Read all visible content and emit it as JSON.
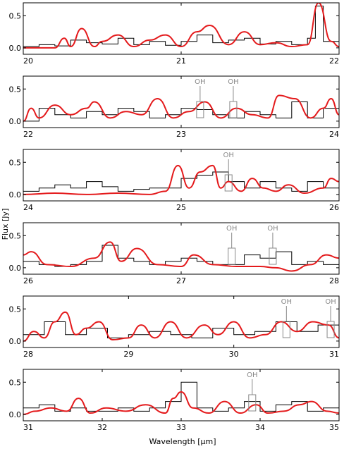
{
  "figure": {
    "xlabel": "Wavelength [μm]",
    "ylabel": "Flux [Jy]"
  },
  "colors": {
    "observed": "#000000",
    "model": "#e41a1c",
    "oh_marker": "#888888"
  },
  "chart_data": [
    {
      "type": "line",
      "panel": 1,
      "xlim": [
        20,
        22
      ],
      "ylim": [
        -0.1,
        0.7
      ],
      "x_ticks": [
        "20",
        "21",
        "22"
      ],
      "y_ticks": [
        "0.0",
        "0.5"
      ],
      "series": [
        {
          "x": [
            20.0,
            20.1,
            20.2,
            20.3,
            20.4,
            20.5,
            20.6,
            20.7,
            20.8,
            20.9,
            21.0,
            21.1,
            21.2,
            21.3,
            21.4,
            21.5,
            21.6,
            21.7,
            21.8,
            21.85,
            21.9,
            22.0
          ],
          "y": [
            0.02,
            0.05,
            0.03,
            0.12,
            0.08,
            0.06,
            0.15,
            0.05,
            0.1,
            0.04,
            0.1,
            0.2,
            0.08,
            0.12,
            0.15,
            0.06,
            0.1,
            0.05,
            0.15,
            0.65,
            0.1,
            0.05
          ]
        },
        {
          "x": [
            20.0,
            20.1,
            20.2,
            20.26,
            20.3,
            20.37,
            20.45,
            20.5,
            20.6,
            20.7,
            20.8,
            20.9,
            21.0,
            21.1,
            21.18,
            21.3,
            21.4,
            21.5,
            21.6,
            21.7,
            21.8,
            21.87,
            21.95,
            22.0
          ],
          "y": [
            0.0,
            0.0,
            0.0,
            0.15,
            0.02,
            0.3,
            0.02,
            0.1,
            0.2,
            0.02,
            0.12,
            0.2,
            0.02,
            0.25,
            0.35,
            0.05,
            0.25,
            0.05,
            0.08,
            0.02,
            0.05,
            0.7,
            0.1,
            0.02
          ]
        }
      ],
      "oh_lines": []
    },
    {
      "type": "line",
      "panel": 2,
      "xlim": [
        22,
        24
      ],
      "ylim": [
        -0.1,
        0.7
      ],
      "x_ticks": [
        "22",
        "23",
        "24"
      ],
      "y_ticks": [
        "0.0",
        "0.5"
      ],
      "series": [
        {
          "x": [
            22.0,
            22.1,
            22.2,
            22.3,
            22.4,
            22.5,
            22.6,
            22.7,
            22.8,
            22.9,
            23.0,
            23.1,
            23.2,
            23.3,
            23.4,
            23.5,
            23.6,
            23.7,
            23.8,
            23.9,
            24.0
          ],
          "y": [
            0.0,
            0.2,
            0.1,
            0.05,
            0.15,
            0.1,
            0.2,
            0.15,
            0.05,
            0.1,
            0.2,
            0.18,
            0.1,
            0.05,
            0.15,
            0.1,
            0.05,
            0.3,
            0.05,
            0.2,
            0.1
          ]
        },
        {
          "x": [
            22.0,
            22.05,
            22.1,
            22.2,
            22.3,
            22.4,
            22.45,
            22.55,
            22.65,
            22.75,
            22.85,
            22.95,
            23.05,
            23.15,
            23.25,
            23.35,
            23.45,
            23.55,
            23.62,
            23.72,
            23.82,
            23.9,
            23.95,
            24.0
          ],
          "y": [
            0.0,
            0.2,
            0.05,
            0.25,
            0.1,
            0.2,
            0.3,
            0.05,
            0.15,
            0.1,
            0.35,
            0.05,
            0.15,
            0.3,
            0.05,
            0.2,
            0.1,
            0.05,
            0.4,
            0.35,
            0.05,
            0.2,
            0.35,
            0.1
          ]
        }
      ],
      "oh_lines": [
        {
          "x": 23.12,
          "label": "OH"
        },
        {
          "x": 23.33,
          "label": "OH"
        }
      ]
    },
    {
      "type": "line",
      "panel": 3,
      "xlim": [
        24,
        26
      ],
      "ylim": [
        -0.1,
        0.7
      ],
      "x_ticks": [
        "24",
        "25",
        "26"
      ],
      "y_ticks": [
        "0.0",
        "0.5"
      ],
      "series": [
        {
          "x": [
            24.0,
            24.1,
            24.2,
            24.3,
            24.4,
            24.5,
            24.6,
            24.7,
            24.8,
            24.9,
            25.0,
            25.1,
            25.2,
            25.3,
            25.4,
            25.5,
            25.6,
            25.7,
            25.8,
            25.9,
            26.0
          ],
          "y": [
            0.05,
            0.1,
            0.15,
            0.1,
            0.2,
            0.12,
            0.05,
            0.08,
            0.1,
            0.1,
            0.25,
            0.3,
            0.35,
            0.2,
            0.1,
            0.2,
            0.1,
            0.05,
            0.2,
            0.1,
            0.15
          ]
        },
        {
          "x": [
            24.0,
            24.2,
            24.4,
            24.6,
            24.8,
            24.9,
            24.98,
            25.05,
            25.12,
            25.2,
            25.25,
            25.3,
            25.38,
            25.45,
            25.52,
            25.6,
            25.68,
            25.78,
            25.9,
            25.95,
            26.0
          ],
          "y": [
            0.0,
            0.02,
            0.0,
            0.02,
            0.0,
            0.05,
            0.45,
            0.1,
            0.35,
            0.45,
            0.1,
            0.2,
            0.05,
            0.25,
            0.1,
            0.05,
            0.15,
            0.02,
            0.1,
            0.25,
            0.2
          ]
        }
      ],
      "oh_lines": [
        {
          "x": 25.3,
          "label": "OH"
        }
      ]
    },
    {
      "type": "line",
      "panel": 4,
      "xlim": [
        26,
        28
      ],
      "ylim": [
        -0.1,
        0.7
      ],
      "x_ticks": [
        "26",
        "27",
        "28"
      ],
      "y_ticks": [
        "0.0",
        "0.5"
      ],
      "series": [
        {
          "x": [
            26.0,
            26.1,
            26.2,
            26.3,
            26.4,
            26.5,
            26.6,
            26.7,
            26.8,
            26.9,
            27.0,
            27.1,
            27.2,
            27.3,
            27.4,
            27.5,
            27.6,
            27.7,
            27.8,
            27.9,
            28.0
          ],
          "y": [
            0.1,
            0.05,
            0.02,
            0.05,
            0.1,
            0.35,
            0.15,
            0.1,
            0.05,
            0.1,
            0.15,
            0.1,
            0.05,
            0.05,
            0.2,
            0.15,
            0.25,
            0.05,
            0.1,
            0.05,
            0.05
          ]
        },
        {
          "x": [
            26.0,
            26.05,
            26.15,
            26.3,
            26.45,
            26.55,
            26.62,
            26.72,
            26.85,
            27.0,
            27.08,
            27.2,
            27.35,
            27.5,
            27.6,
            27.7,
            27.82,
            27.92,
            28.0
          ],
          "y": [
            0.2,
            0.25,
            0.05,
            0.02,
            0.15,
            0.4,
            0.1,
            0.3,
            0.05,
            0.02,
            0.2,
            0.05,
            0.02,
            0.02,
            0.0,
            -0.05,
            0.05,
            0.2,
            0.15
          ]
        }
      ],
      "oh_lines": [
        {
          "x": 27.32,
          "label": "OH"
        },
        {
          "x": 27.58,
          "label": "OH"
        }
      ]
    },
    {
      "type": "line",
      "panel": 5,
      "xlim": [
        28,
        31
      ],
      "ylim": [
        -0.1,
        0.7
      ],
      "x_ticks": [
        "28",
        "29",
        "30",
        "31"
      ],
      "y_ticks": [
        "0.0",
        "0.5"
      ],
      "series": [
        {
          "x": [
            28.0,
            28.2,
            28.4,
            28.6,
            28.8,
            29.0,
            29.2,
            29.4,
            29.6,
            29.8,
            30.0,
            30.2,
            30.4,
            30.6,
            30.8,
            31.0
          ],
          "y": [
            0.1,
            0.3,
            0.1,
            0.2,
            0.05,
            0.1,
            0.15,
            0.1,
            0.05,
            0.2,
            0.1,
            0.15,
            0.3,
            0.15,
            0.25,
            0.05
          ]
        },
        {
          "x": [
            28.0,
            28.1,
            28.2,
            28.3,
            28.4,
            28.5,
            28.6,
            28.72,
            28.85,
            29.0,
            29.12,
            29.25,
            29.4,
            29.55,
            29.72,
            29.85,
            30.0,
            30.15,
            30.3,
            30.45,
            30.6,
            30.75,
            30.9,
            31.0
          ],
          "y": [
            0.0,
            0.15,
            0.05,
            0.3,
            0.45,
            0.1,
            0.2,
            0.3,
            0.02,
            0.05,
            0.25,
            0.05,
            0.3,
            0.05,
            0.25,
            0.1,
            0.3,
            0.05,
            0.1,
            0.3,
            0.15,
            0.3,
            0.25,
            0.05
          ]
        }
      ],
      "oh_lines": [
        {
          "x": 30.5,
          "label": "OH"
        },
        {
          "x": 30.92,
          "label": "OH"
        }
      ]
    },
    {
      "type": "line",
      "panel": 6,
      "xlim": [
        31,
        35
      ],
      "ylim": [
        -0.1,
        0.7
      ],
      "x_ticks": [
        "31",
        "32",
        "33",
        "34",
        "35"
      ],
      "y_ticks": [
        "0.0",
        "0.5"
      ],
      "series": [
        {
          "x": [
            31.0,
            31.2,
            31.4,
            31.6,
            31.8,
            32.0,
            32.2,
            32.4,
            32.6,
            32.8,
            33.0,
            33.2,
            33.4,
            33.6,
            33.8,
            34.0,
            34.2,
            34.4,
            34.6,
            34.8,
            35.0
          ],
          "y": [
            0.1,
            0.15,
            0.05,
            0.1,
            0.05,
            0.05,
            0.1,
            0.05,
            0.1,
            0.2,
            0.5,
            0.1,
            0.05,
            0.1,
            0.2,
            0.05,
            0.15,
            0.2,
            0.05,
            0.1,
            0.05
          ]
        },
        {
          "x": [
            31.0,
            31.15,
            31.35,
            31.55,
            31.7,
            31.85,
            32.05,
            32.3,
            32.55,
            32.8,
            32.9,
            33.0,
            33.15,
            33.35,
            33.55,
            33.75,
            33.95,
            34.1,
            34.3,
            34.5,
            34.65,
            34.85,
            35.0
          ],
          "y": [
            0.0,
            0.05,
            0.1,
            0.05,
            0.25,
            0.02,
            0.1,
            0.05,
            0.15,
            0.02,
            0.25,
            0.35,
            0.1,
            0.02,
            0.2,
            0.02,
            0.15,
            0.02,
            0.05,
            0.15,
            0.2,
            0.05,
            0.02
          ]
        }
      ],
      "oh_lines": [
        {
          "x": 33.9,
          "label": "OH"
        }
      ]
    }
  ]
}
